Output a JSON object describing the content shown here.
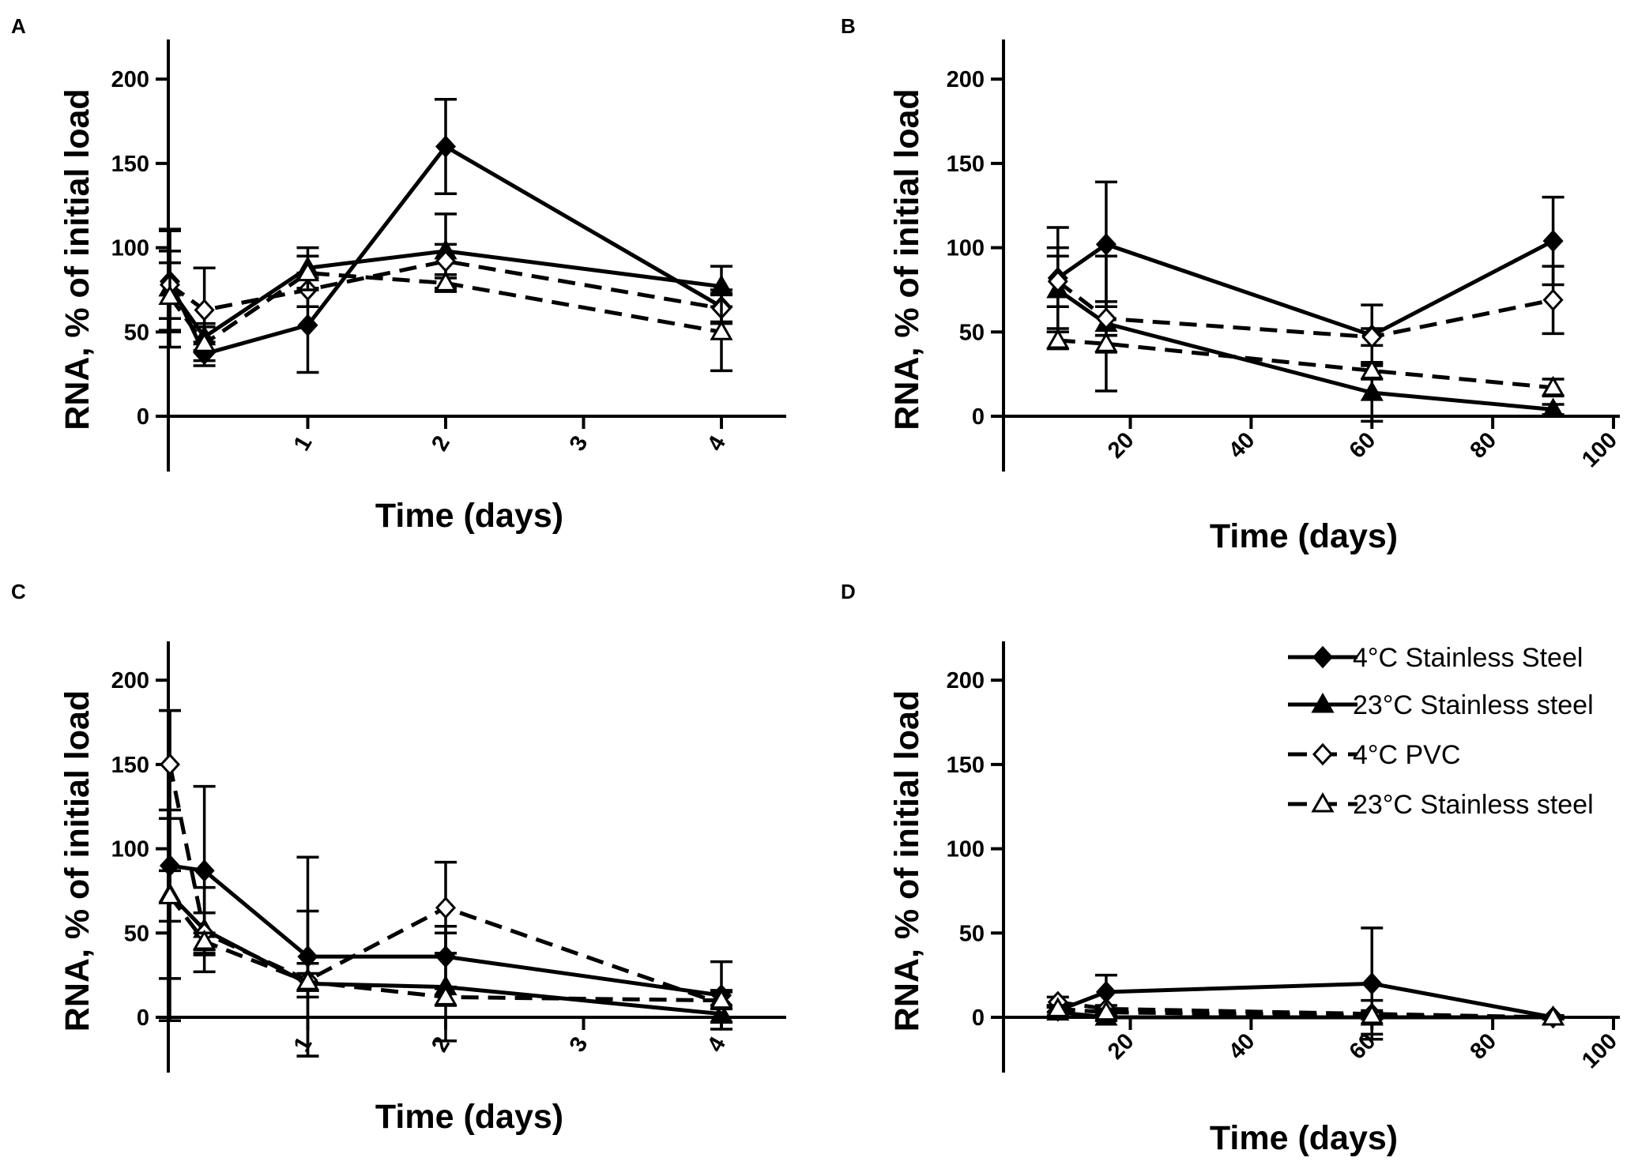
{
  "chart_data": [
    {
      "panel": "A",
      "type": "line",
      "xlabel": "Time (days)",
      "ylabel": "RNA, % of initial load",
      "xlim": [
        0,
        4.4
      ],
      "ylim": [
        -35,
        225
      ],
      "xticks": [
        "1",
        "2",
        "3",
        "4"
      ],
      "xtickvals": [
        1,
        2,
        3,
        4
      ],
      "yticks": [
        "0",
        "50",
        "100",
        "150",
        "200"
      ],
      "ytickvals": [
        0,
        50,
        100,
        150,
        200
      ],
      "series": [
        {
          "name": "4°C Stainless Steel",
          "x": [
            0,
            0.25,
            1,
            2,
            4
          ],
          "values": [
            80,
            37,
            54,
            160,
            65
          ],
          "err": [
            30,
            7,
            28,
            28,
            10
          ]
        },
        {
          "name": "23°C Stainless steel",
          "x": [
            0,
            0.25,
            1,
            2,
            4
          ],
          "values": [
            76,
            47,
            88,
            98,
            77
          ],
          "err": [
            35,
            8,
            12,
            22,
            12
          ]
        },
        {
          "name": "4°C PVC",
          "x": [
            0,
            0.25,
            1,
            2,
            4
          ],
          "values": [
            78,
            63,
            75,
            92,
            64
          ],
          "err": [
            20,
            25,
            10,
            10,
            8
          ]
        },
        {
          "name": "23°C Stainless steel",
          "x": [
            0,
            0.25,
            1,
            2,
            4
          ],
          "values": [
            71,
            43,
            85,
            79,
            50
          ],
          "err": [
            20,
            10,
            10,
            5,
            23
          ]
        }
      ]
    },
    {
      "panel": "B",
      "type": "line",
      "xlabel": "Time (days)",
      "ylabel": "RNA, % of initial load",
      "xlim": [
        -1,
        100
      ],
      "ylim": [
        -35,
        225
      ],
      "xticks": [
        "20",
        "40",
        "60",
        "80",
        "100"
      ],
      "xtickvals": [
        20,
        40,
        60,
        80,
        100
      ],
      "yticks": [
        "0",
        "50",
        "100",
        "150",
        "200"
      ],
      "ytickvals": [
        0,
        50,
        100,
        150,
        200
      ],
      "series": [
        {
          "name": "4°C Stainless Steel",
          "x": [
            8,
            16,
            60,
            90
          ],
          "values": [
            82,
            102,
            48,
            104
          ],
          "err": [
            30,
            37,
            18,
            26
          ]
        },
        {
          "name": "23°C Stainless steel",
          "x": [
            8,
            16,
            60,
            90
          ],
          "values": [
            75,
            55,
            14,
            4
          ],
          "err": [
            25,
            40,
            17,
            3
          ]
        },
        {
          "name": "4°C PVC",
          "x": [
            8,
            16,
            60,
            90
          ],
          "values": [
            80,
            58,
            47,
            69
          ],
          "err": [
            15,
            10,
            5,
            20
          ]
        },
        {
          "name": "23°C Stainless steel",
          "x": [
            8,
            16,
            60,
            90
          ],
          "values": [
            45,
            43,
            27,
            17
          ],
          "err": [
            5,
            5,
            5,
            5
          ]
        }
      ]
    },
    {
      "panel": "C",
      "type": "line",
      "xlabel": "Time (days)",
      "ylabel": "RNA, % of initial load",
      "xlim": [
        0,
        4.4
      ],
      "ylim": [
        -35,
        225
      ],
      "xticks": [
        "1",
        "2",
        "3",
        "4"
      ],
      "xtickvals": [
        1,
        2,
        3,
        4
      ],
      "yticks": [
        "0",
        "50",
        "100",
        "150",
        "200"
      ],
      "ytickvals": [
        0,
        50,
        100,
        150,
        200
      ],
      "series": [
        {
          "name": "4°C Stainless Steel",
          "x": [
            0,
            0.25,
            1,
            2,
            4
          ],
          "values": [
            90,
            87,
            36,
            36,
            13
          ],
          "err": [
            92,
            50,
            59,
            18,
            20
          ]
        },
        {
          "name": "23°C Stainless steel",
          "x": [
            0,
            0.25,
            1,
            2,
            4
          ],
          "values": [
            73,
            52,
            20,
            18,
            2
          ],
          "err": [
            50,
            25,
            43,
            32,
            5
          ]
        },
        {
          "name": "4°C PVC",
          "x": [
            0,
            0.25,
            1,
            2,
            4
          ],
          "values": [
            150,
            50,
            22,
            65,
            8
          ],
          "err": [
            32,
            12,
            10,
            27,
            8
          ]
        },
        {
          "name": "23°C Stainless steel",
          "x": [
            0,
            0.25,
            1,
            2,
            4
          ],
          "values": [
            72,
            45,
            21,
            12,
            10
          ],
          "err": [
            15,
            5,
            5,
            5,
            5
          ]
        }
      ]
    },
    {
      "panel": "D",
      "type": "line",
      "xlabel": "Time (days)",
      "ylabel": "RNA, % of initial load",
      "xlim": [
        -1,
        100
      ],
      "ylim": [
        -35,
        225
      ],
      "xticks": [
        "20",
        "40",
        "60",
        "80",
        "100"
      ],
      "xtickvals": [
        20,
        40,
        60,
        80,
        100
      ],
      "yticks": [
        "0",
        "50",
        "100",
        "150",
        "200"
      ],
      "ytickvals": [
        0,
        50,
        100,
        150,
        200
      ],
      "series": [
        {
          "name": "4°C Stainless Steel",
          "x": [
            8,
            16,
            60,
            90
          ],
          "values": [
            4,
            15,
            20,
            0
          ],
          "err": [
            3,
            10,
            33,
            1
          ]
        },
        {
          "name": "23°C Stainless steel",
          "x": [
            8,
            16,
            60,
            90
          ],
          "values": [
            3,
            0,
            0,
            0
          ],
          "err": [
            3,
            2,
            10,
            1
          ]
        },
        {
          "name": "4°C PVC",
          "x": [
            8,
            16,
            60,
            90
          ],
          "values": [
            9,
            5,
            2,
            0
          ],
          "err": [
            3,
            2,
            2,
            1
          ]
        },
        {
          "name": "23°C Stainless steel",
          "x": [
            8,
            16,
            60,
            90
          ],
          "values": [
            5,
            3,
            1,
            0
          ],
          "err": [
            2,
            2,
            2,
            1
          ]
        }
      ]
    }
  ],
  "legend": {
    "placement": "top-right of panel D",
    "items": [
      {
        "label": "4°C Stainless Steel",
        "marker": "filled-diamond",
        "dash": "solid"
      },
      {
        "label": "23°C Stainless steel",
        "marker": "filled-triangle",
        "dash": "solid"
      },
      {
        "label": "4°C PVC",
        "marker": "open-diamond",
        "dash": "dashed"
      },
      {
        "label": "23°C Stainless steel",
        "marker": "open-triangle",
        "dash": "dashed"
      }
    ]
  },
  "colors": {
    "ink": "#000000",
    "background": "#ffffff"
  }
}
